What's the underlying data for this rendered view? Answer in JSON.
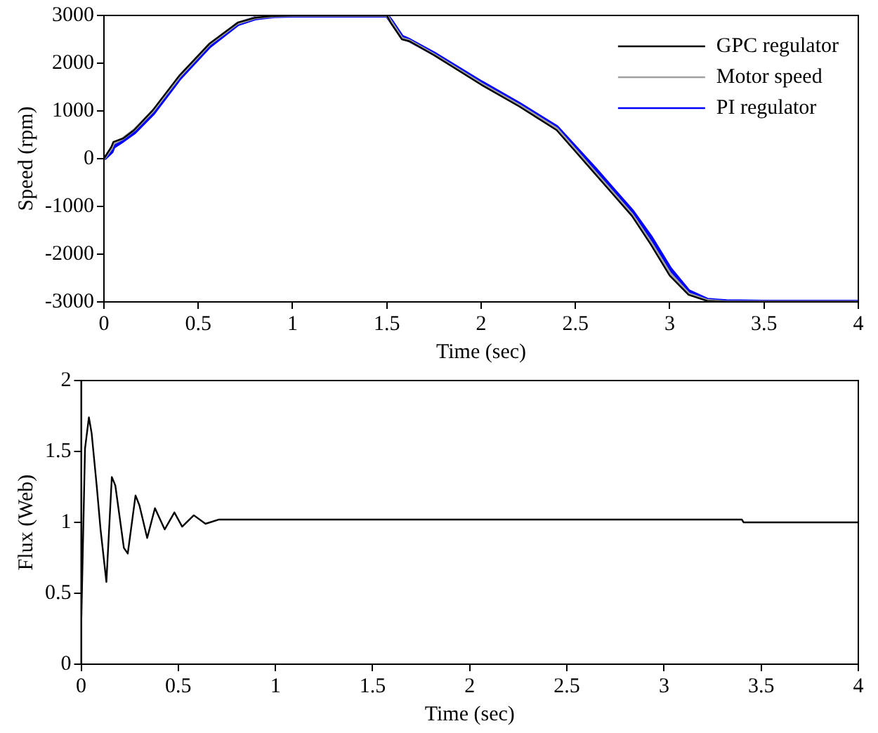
{
  "chart_data": [
    {
      "type": "line",
      "xlabel": "Time (sec)",
      "ylabel": "Speed (rpm)",
      "x": [
        0,
        0.04,
        0.05,
        0.1,
        0.16,
        0.26,
        0.4,
        0.56,
        0.71,
        0.8,
        0.9,
        1,
        1.5,
        1.52,
        1.58,
        1.62,
        1.75,
        2,
        2.2,
        2.4,
        2.5,
        2.6,
        2.7,
        2.8,
        2.9,
        3,
        3.1,
        3.2,
        3.3,
        3.5,
        4
      ],
      "series": [
        {
          "name": "GPC regulator",
          "color": "#000000",
          "values": [
            0,
            250,
            350,
            420,
            600,
            1020,
            1740,
            2410,
            2850,
            2950,
            2990,
            3000,
            3000,
            2850,
            2500,
            2460,
            2170,
            1550,
            1100,
            600,
            150,
            -300,
            -750,
            -1200,
            -1800,
            -2450,
            -2850,
            -2980,
            -3000,
            -3000,
            -3000
          ]
        },
        {
          "name": "Motor speed",
          "color": "#a0a0a0",
          "values": [
            0,
            220,
            320,
            420,
            600,
            1000,
            1720,
            2400,
            2840,
            2950,
            2990,
            3000,
            3000,
            2880,
            2520,
            2470,
            2180,
            1570,
            1120,
            630,
            180,
            -270,
            -720,
            -1170,
            -1760,
            -2400,
            -2830,
            -2970,
            -3000,
            -3000,
            -3000
          ]
        },
        {
          "name": "PI regulator",
          "color": "#0000ff",
          "values": [
            0,
            150,
            250,
            380,
            550,
            950,
            1680,
            2360,
            2820,
            2940,
            2990,
            3000,
            3000,
            2900,
            2550,
            2480,
            2200,
            1600,
            1150,
            660,
            230,
            -200,
            -650,
            -1100,
            -1650,
            -2300,
            -2780,
            -2960,
            -2990,
            -3000,
            -3000
          ]
        }
      ],
      "xlim": [
        0,
        4
      ],
      "xticks": [
        0,
        0.5,
        1,
        1.5,
        2,
        2.5,
        3,
        3.5,
        4
      ],
      "ylim": [
        -3000,
        3000
      ],
      "yticks": [
        -3000,
        -2000,
        -1000,
        0,
        1000,
        2000,
        3000
      ],
      "legend": "top right",
      "grid": false,
      "marker": "none",
      "line_style": "solid"
    },
    {
      "type": "line",
      "xlabel": "Time (sec)",
      "ylabel": "Flux (Web)",
      "x": [
        0,
        0.001,
        0.02,
        0.04,
        0.054,
        0.08,
        0.1,
        0.13,
        0.158,
        0.176,
        0.22,
        0.24,
        0.28,
        0.3,
        0.34,
        0.38,
        0.43,
        0.48,
        0.52,
        0.58,
        0.64,
        0.71,
        3.4,
        3.41,
        4
      ],
      "series": [
        {
          "color": "#000000",
          "values": [
            0,
            0.31,
            1.52,
            1.74,
            1.63,
            1.26,
            0.95,
            0.58,
            1.32,
            1.26,
            0.82,
            0.78,
            1.19,
            1.12,
            0.89,
            1.1,
            0.95,
            1.07,
            0.97,
            1.05,
            0.99,
            1.02,
            1.02,
            1.0,
            1.0
          ]
        }
      ],
      "xlim": [
        0,
        4
      ],
      "xticks": [
        0,
        0.5,
        1,
        1.5,
        2,
        2.5,
        3,
        3.5,
        4
      ],
      "ylim": [
        0,
        2
      ],
      "yticks": [
        0,
        0.5,
        1,
        1.5,
        2
      ],
      "legend": false,
      "grid": false,
      "marker": "none",
      "line_style": "solid"
    }
  ]
}
